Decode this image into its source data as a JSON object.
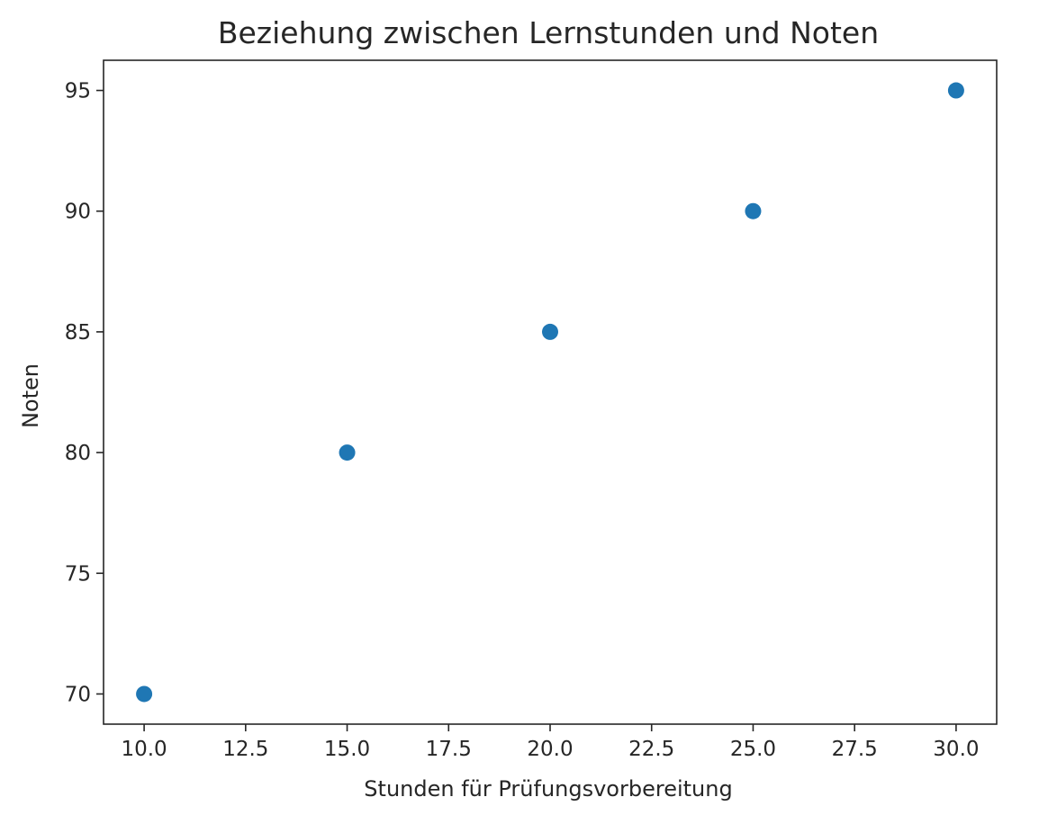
{
  "chart_data": {
    "type": "scatter",
    "title": "Beziehung zwischen Lernstunden und Noten",
    "xlabel": "Stunden für Prüfungsvorbereitung",
    "ylabel": "Noten",
    "x": [
      10,
      15,
      20,
      25,
      30
    ],
    "y": [
      70,
      80,
      85,
      90,
      95
    ],
    "xlim": [
      9,
      31
    ],
    "ylim": [
      68.75,
      96.25
    ],
    "xticks": [
      10.0,
      12.5,
      15.0,
      17.5,
      20.0,
      22.5,
      25.0,
      27.5,
      30.0
    ],
    "xtick_labels": [
      "10.0",
      "12.5",
      "15.0",
      "17.5",
      "20.0",
      "22.5",
      "25.0",
      "27.5",
      "30.0"
    ],
    "yticks": [
      70,
      75,
      80,
      85,
      90,
      95
    ],
    "ytick_labels": [
      "70",
      "75",
      "80",
      "85",
      "90",
      "95"
    ],
    "grid": false,
    "marker_color": "#1f77b4"
  }
}
